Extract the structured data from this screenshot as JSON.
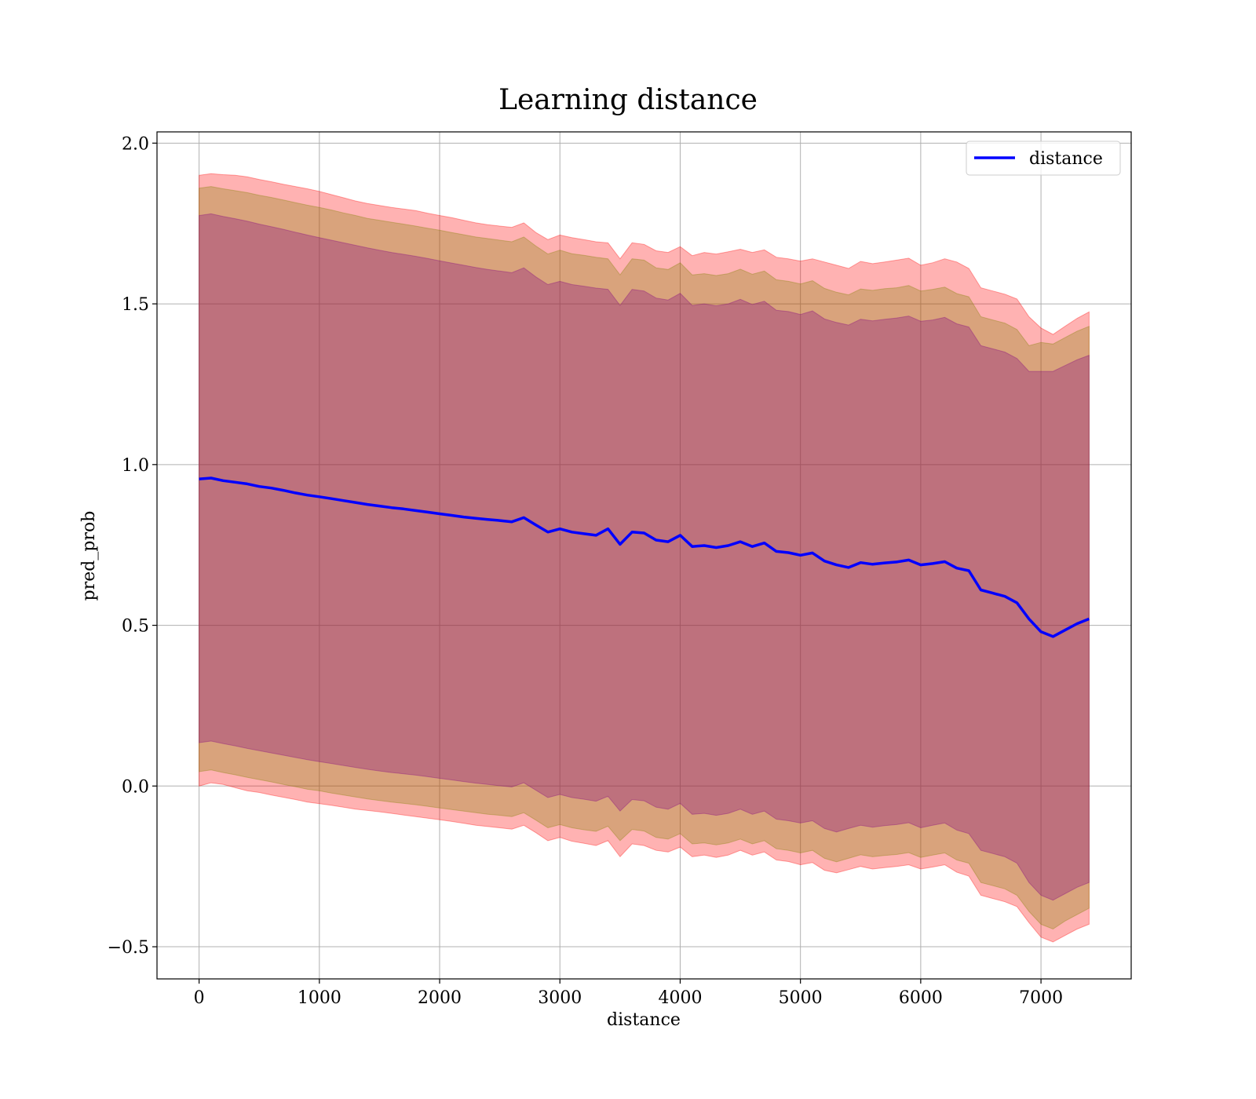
{
  "chart_data": {
    "type": "line",
    "title": "Learning distance",
    "xlabel": "distance",
    "ylabel": "pred_prob",
    "xlim": [
      -350,
      7750
    ],
    "ylim": [
      -0.6,
      2.035
    ],
    "xticks": [
      0,
      1000,
      2000,
      3000,
      4000,
      5000,
      6000,
      7000
    ],
    "xtick_labels": [
      "0",
      "1000",
      "2000",
      "3000",
      "4000",
      "5000",
      "6000",
      "7000"
    ],
    "yticks": [
      -0.5,
      0.0,
      0.5,
      1.0,
      1.5,
      2.0
    ],
    "ytick_labels": [
      "−0.5",
      "0.0",
      "0.5",
      "1.0",
      "1.5",
      "2.0"
    ],
    "grid": true,
    "legend": {
      "position": "upper right",
      "entries": [
        "distance"
      ]
    },
    "colors": {
      "line": "#0000ff",
      "band_outer": "#ff0000",
      "band_middle": "#808000",
      "band_inner": "#800080",
      "grid": "#b0b0b0"
    },
    "series": [
      {
        "name": "distance",
        "x": [
          0,
          100,
          200,
          300,
          400,
          500,
          600,
          700,
          800,
          900,
          1000,
          1100,
          1200,
          1300,
          1400,
          1500,
          1600,
          1700,
          1800,
          1900,
          2000,
          2100,
          2200,
          2300,
          2400,
          2500,
          2600,
          2700,
          2800,
          2900,
          3000,
          3100,
          3200,
          3300,
          3400,
          3500,
          3600,
          3700,
          3800,
          3900,
          4000,
          4100,
          4200,
          4300,
          4400,
          4500,
          4600,
          4700,
          4800,
          4900,
          5000,
          5100,
          5200,
          5300,
          5400,
          5500,
          5600,
          5700,
          5800,
          5900,
          6000,
          6100,
          6200,
          6300,
          6400,
          6500,
          6600,
          6700,
          6800,
          6900,
          7000,
          7100,
          7200,
          7300,
          7400
        ],
        "y": [
          0.955,
          0.958,
          0.95,
          0.945,
          0.94,
          0.932,
          0.927,
          0.92,
          0.912,
          0.905,
          0.9,
          0.894,
          0.888,
          0.882,
          0.876,
          0.871,
          0.866,
          0.862,
          0.857,
          0.852,
          0.847,
          0.842,
          0.837,
          0.833,
          0.829,
          0.826,
          0.822,
          0.835,
          0.812,
          0.79,
          0.8,
          0.79,
          0.785,
          0.78,
          0.8,
          0.752,
          0.79,
          0.787,
          0.765,
          0.76,
          0.78,
          0.745,
          0.748,
          0.742,
          0.748,
          0.76,
          0.745,
          0.756,
          0.73,
          0.726,
          0.718,
          0.725,
          0.7,
          0.688,
          0.68,
          0.695,
          0.69,
          0.694,
          0.697,
          0.703,
          0.688,
          0.692,
          0.698,
          0.678,
          0.67,
          0.61,
          0.6,
          0.59,
          0.57,
          0.52,
          0.48,
          0.465,
          0.485,
          0.505,
          0.52
        ]
      }
    ],
    "bands": [
      {
        "x": [
          0,
          100,
          200,
          300,
          400,
          500,
          600,
          700,
          800,
          900,
          1000,
          1100,
          1200,
          1300,
          1400,
          1500,
          1600,
          1700,
          1800,
          1900,
          2000,
          2100,
          2200,
          2300,
          2400,
          2500,
          2600,
          2700,
          2800,
          2900,
          3000,
          3100,
          3200,
          3300,
          3400,
          3500,
          3600,
          3700,
          3800,
          3900,
          4000,
          4100,
          4200,
          4300,
          4400,
          4500,
          4600,
          4700,
          4800,
          4900,
          5000,
          5100,
          5200,
          5300,
          5400,
          5500,
          5600,
          5700,
          5800,
          5900,
          6000,
          6100,
          6200,
          6300,
          6400,
          6500,
          6600,
          6700,
          6800,
          6900,
          7000,
          7100,
          7200,
          7300,
          7400
        ],
        "upper": [
          1.9,
          1.905,
          1.902,
          1.9,
          1.895,
          1.887,
          1.88,
          1.872,
          1.865,
          1.858,
          1.85,
          1.84,
          1.83,
          1.82,
          1.812,
          1.806,
          1.8,
          1.795,
          1.79,
          1.782,
          1.775,
          1.768,
          1.76,
          1.752,
          1.746,
          1.742,
          1.738,
          1.752,
          1.722,
          1.7,
          1.714,
          1.706,
          1.7,
          1.693,
          1.69,
          1.64,
          1.69,
          1.685,
          1.665,
          1.66,
          1.678,
          1.65,
          1.66,
          1.655,
          1.662,
          1.67,
          1.66,
          1.668,
          1.645,
          1.64,
          1.633,
          1.64,
          1.63,
          1.62,
          1.61,
          1.632,
          1.625,
          1.63,
          1.636,
          1.642,
          1.62,
          1.628,
          1.64,
          1.63,
          1.61,
          1.55,
          1.54,
          1.53,
          1.515,
          1.46,
          1.425,
          1.405,
          1.43,
          1.455,
          1.475
        ],
        "lower": [
          0.0,
          0.01,
          0.005,
          -0.005,
          -0.015,
          -0.02,
          -0.028,
          -0.035,
          -0.042,
          -0.05,
          -0.055,
          -0.06,
          -0.066,
          -0.072,
          -0.076,
          -0.08,
          -0.085,
          -0.09,
          -0.095,
          -0.1,
          -0.105,
          -0.11,
          -0.116,
          -0.122,
          -0.126,
          -0.13,
          -0.134,
          -0.122,
          -0.145,
          -0.17,
          -0.16,
          -0.172,
          -0.178,
          -0.185,
          -0.17,
          -0.22,
          -0.18,
          -0.185,
          -0.2,
          -0.205,
          -0.19,
          -0.22,
          -0.215,
          -0.222,
          -0.215,
          -0.2,
          -0.215,
          -0.205,
          -0.23,
          -0.235,
          -0.245,
          -0.238,
          -0.262,
          -0.27,
          -0.26,
          -0.25,
          -0.258,
          -0.254,
          -0.25,
          -0.245,
          -0.258,
          -0.252,
          -0.245,
          -0.268,
          -0.28,
          -0.34,
          -0.35,
          -0.36,
          -0.375,
          -0.425,
          -0.47,
          -0.485,
          -0.465,
          -0.445,
          -0.43
        ]
      },
      {
        "x": [
          0,
          100,
          200,
          300,
          400,
          500,
          600,
          700,
          800,
          900,
          1000,
          1100,
          1200,
          1300,
          1400,
          1500,
          1600,
          1700,
          1800,
          1900,
          2000,
          2100,
          2200,
          2300,
          2400,
          2500,
          2600,
          2700,
          2800,
          2900,
          3000,
          3100,
          3200,
          3300,
          3400,
          3500,
          3600,
          3700,
          3800,
          3900,
          4000,
          4100,
          4200,
          4300,
          4400,
          4500,
          4600,
          4700,
          4800,
          4900,
          5000,
          5100,
          5200,
          5300,
          5400,
          5500,
          5600,
          5700,
          5800,
          5900,
          6000,
          6100,
          6200,
          6300,
          6400,
          6500,
          6600,
          6700,
          6800,
          6900,
          7000,
          7100,
          7200,
          7300,
          7400
        ],
        "upper": [
          1.86,
          1.865,
          1.858,
          1.852,
          1.846,
          1.838,
          1.831,
          1.823,
          1.815,
          1.807,
          1.8,
          1.792,
          1.783,
          1.775,
          1.766,
          1.76,
          1.754,
          1.748,
          1.742,
          1.735,
          1.729,
          1.722,
          1.715,
          1.708,
          1.703,
          1.698,
          1.693,
          1.708,
          1.68,
          1.655,
          1.667,
          1.656,
          1.651,
          1.645,
          1.64,
          1.59,
          1.64,
          1.636,
          1.612,
          1.607,
          1.628,
          1.59,
          1.594,
          1.588,
          1.594,
          1.608,
          1.592,
          1.602,
          1.575,
          1.57,
          1.562,
          1.572,
          1.548,
          1.536,
          1.528,
          1.546,
          1.542,
          1.547,
          1.55,
          1.557,
          1.54,
          1.545,
          1.552,
          1.532,
          1.522,
          1.46,
          1.45,
          1.44,
          1.42,
          1.37,
          1.38,
          1.375,
          1.395,
          1.415,
          1.43
        ],
        "lower": [
          0.045,
          0.05,
          0.042,
          0.035,
          0.027,
          0.02,
          0.013,
          0.005,
          -0.002,
          -0.01,
          -0.015,
          -0.022,
          -0.028,
          -0.034,
          -0.04,
          -0.045,
          -0.05,
          -0.054,
          -0.058,
          -0.063,
          -0.068,
          -0.073,
          -0.078,
          -0.083,
          -0.088,
          -0.091,
          -0.095,
          -0.083,
          -0.106,
          -0.13,
          -0.12,
          -0.13,
          -0.136,
          -0.141,
          -0.125,
          -0.17,
          -0.135,
          -0.14,
          -0.16,
          -0.165,
          -0.148,
          -0.18,
          -0.177,
          -0.183,
          -0.177,
          -0.165,
          -0.18,
          -0.17,
          -0.195,
          -0.2,
          -0.208,
          -0.2,
          -0.225,
          -0.236,
          -0.225,
          -0.214,
          -0.22,
          -0.216,
          -0.213,
          -0.207,
          -0.222,
          -0.215,
          -0.208,
          -0.23,
          -0.24,
          -0.3,
          -0.31,
          -0.32,
          -0.34,
          -0.39,
          -0.43,
          -0.445,
          -0.42,
          -0.4,
          -0.38
        ]
      },
      {
        "x": [
          0,
          100,
          200,
          300,
          400,
          500,
          600,
          700,
          800,
          900,
          1000,
          1100,
          1200,
          1300,
          1400,
          1500,
          1600,
          1700,
          1800,
          1900,
          2000,
          2100,
          2200,
          2300,
          2400,
          2500,
          2600,
          2700,
          2800,
          2900,
          3000,
          3100,
          3200,
          3300,
          3400,
          3500,
          3600,
          3700,
          3800,
          3900,
          4000,
          4100,
          4200,
          4300,
          4400,
          4500,
          4600,
          4700,
          4800,
          4900,
          5000,
          5100,
          5200,
          5300,
          5400,
          5500,
          5600,
          5700,
          5800,
          5900,
          6000,
          6100,
          6200,
          6300,
          6400,
          6500,
          6600,
          6700,
          6800,
          6900,
          7000,
          7100,
          7200,
          7300,
          7400
        ],
        "upper": [
          1.775,
          1.78,
          1.772,
          1.765,
          1.757,
          1.748,
          1.74,
          1.732,
          1.723,
          1.714,
          1.706,
          1.698,
          1.69,
          1.682,
          1.674,
          1.667,
          1.66,
          1.654,
          1.648,
          1.641,
          1.634,
          1.627,
          1.62,
          1.613,
          1.607,
          1.602,
          1.597,
          1.612,
          1.584,
          1.56,
          1.57,
          1.56,
          1.555,
          1.549,
          1.545,
          1.495,
          1.545,
          1.54,
          1.518,
          1.512,
          1.533,
          1.495,
          1.5,
          1.494,
          1.5,
          1.514,
          1.498,
          1.508,
          1.48,
          1.476,
          1.467,
          1.478,
          1.453,
          1.442,
          1.434,
          1.452,
          1.447,
          1.452,
          1.456,
          1.462,
          1.446,
          1.45,
          1.458,
          1.438,
          1.428,
          1.37,
          1.36,
          1.35,
          1.33,
          1.29,
          1.29,
          1.29,
          1.308,
          1.326,
          1.34
        ],
        "lower": [
          0.135,
          0.14,
          0.132,
          0.125,
          0.117,
          0.11,
          0.103,
          0.096,
          0.089,
          0.082,
          0.076,
          0.07,
          0.064,
          0.058,
          0.052,
          0.047,
          0.042,
          0.038,
          0.034,
          0.029,
          0.024,
          0.019,
          0.014,
          0.009,
          0.005,
          0.001,
          -0.003,
          0.01,
          -0.013,
          -0.036,
          -0.026,
          -0.036,
          -0.041,
          -0.047,
          -0.032,
          -0.078,
          -0.042,
          -0.046,
          -0.066,
          -0.072,
          -0.054,
          -0.088,
          -0.085,
          -0.091,
          -0.085,
          -0.072,
          -0.088,
          -0.078,
          -0.103,
          -0.108,
          -0.115,
          -0.108,
          -0.132,
          -0.143,
          -0.132,
          -0.122,
          -0.128,
          -0.123,
          -0.12,
          -0.114,
          -0.13,
          -0.122,
          -0.115,
          -0.137,
          -0.148,
          -0.2,
          -0.21,
          -0.22,
          -0.24,
          -0.3,
          -0.34,
          -0.355,
          -0.335,
          -0.315,
          -0.3
        ]
      }
    ]
  }
}
